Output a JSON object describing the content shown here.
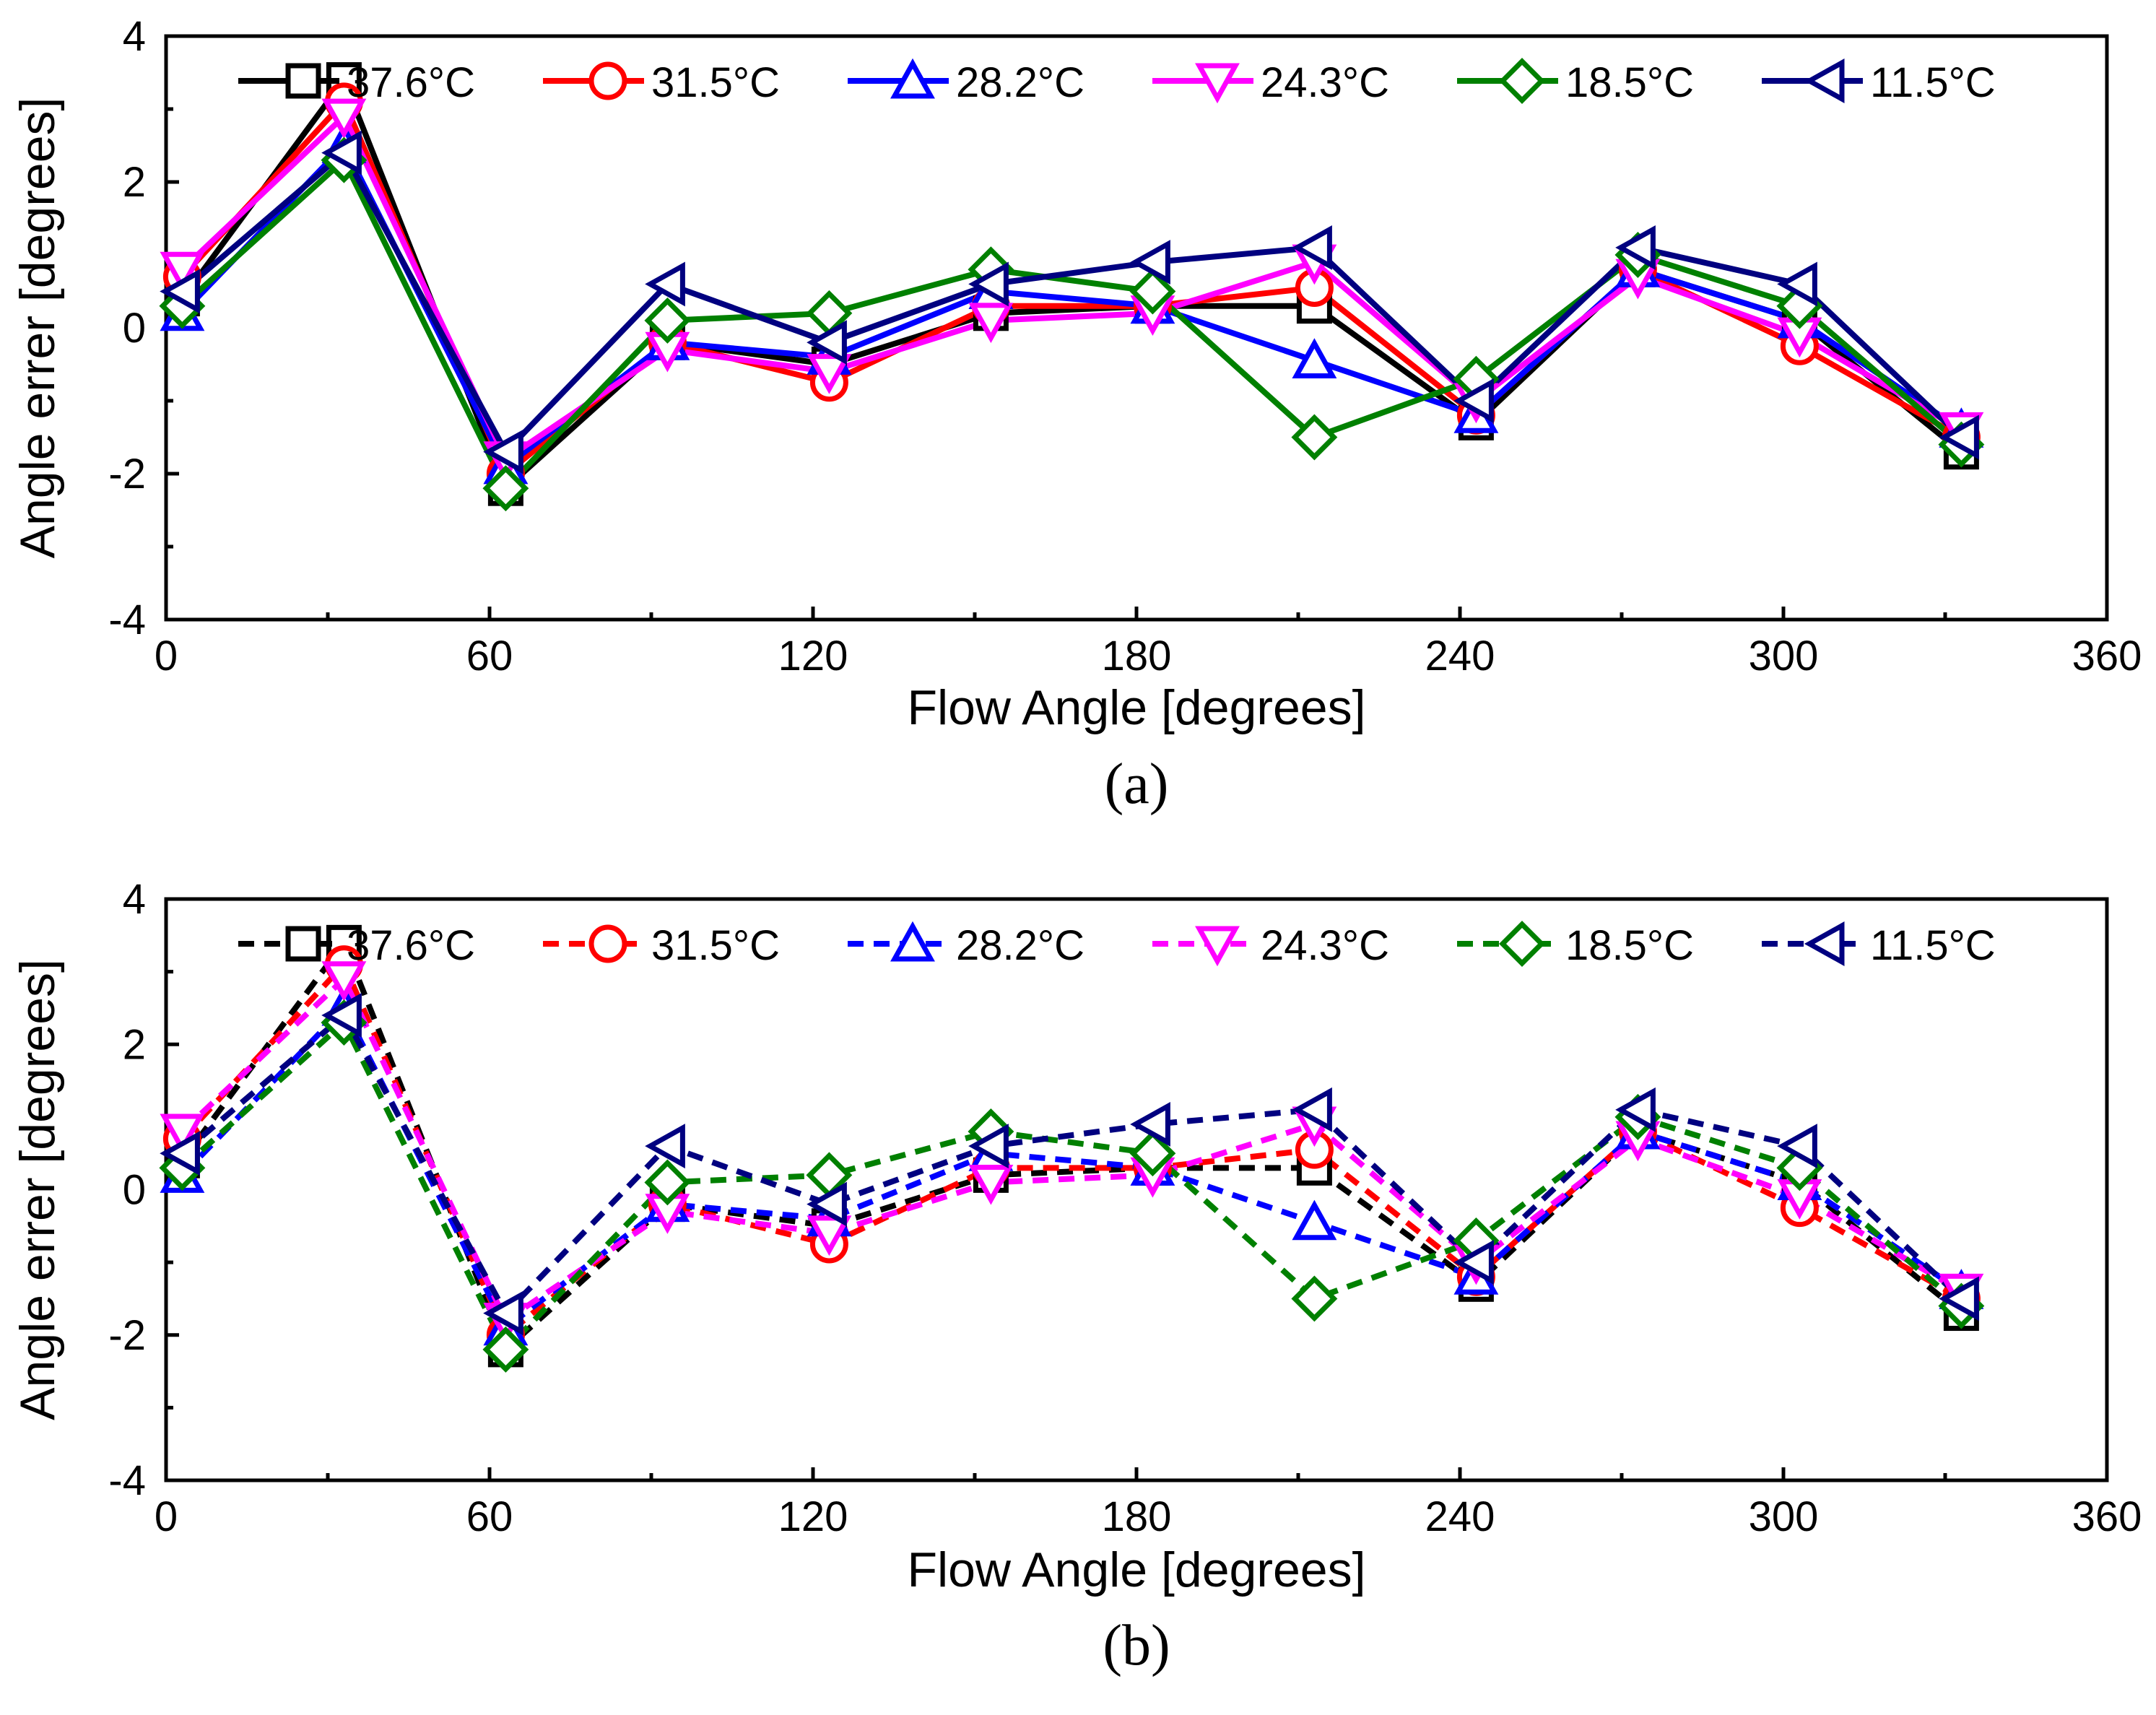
{
  "chart_data": [
    {
      "panel_label": "(a)",
      "type": "line",
      "line_style": "solid",
      "title": "",
      "xlabel": "Flow Angle [degrees]",
      "ylabel": "Angle errer [degrees]",
      "xlim": [
        0,
        360
      ],
      "ylim": [
        -4,
        4
      ],
      "xticks": [
        0,
        60,
        120,
        180,
        240,
        300,
        360
      ],
      "yticks": [
        -4,
        -2,
        0,
        2,
        4
      ],
      "grid": false,
      "legend_position": "top",
      "x": [
        3,
        33,
        63,
        93,
        123,
        153,
        183,
        213,
        243,
        273,
        303,
        333
      ],
      "series": [
        {
          "name": "37.6°C",
          "color": "#000000",
          "marker": "square",
          "values": [
            0.4,
            3.4,
            -2.2,
            -0.2,
            -0.5,
            0.2,
            0.3,
            0.3,
            -1.3,
            0.8,
            0.1,
            -1.7
          ]
        },
        {
          "name": "31.5°C",
          "color": "#ff0000",
          "marker": "circle",
          "values": [
            0.7,
            3.1,
            -2.0,
            -0.2,
            -0.75,
            0.3,
            0.3,
            0.55,
            -1.2,
            0.8,
            -0.25,
            -1.5
          ]
        },
        {
          "name": "28.2°C",
          "color": "#0000ff",
          "marker": "triangle-up",
          "values": [
            0.2,
            2.5,
            -1.9,
            -0.2,
            -0.4,
            0.5,
            0.3,
            -0.45,
            -1.2,
            0.8,
            0.1,
            -1.4
          ]
        },
        {
          "name": "24.3°C",
          "color": "#ff00ff",
          "marker": "triangle-down",
          "values": [
            0.8,
            2.9,
            -1.8,
            -0.3,
            -0.6,
            0.1,
            0.2,
            0.9,
            -1.0,
            0.7,
            -0.1,
            -1.4
          ]
        },
        {
          "name": "18.5°C",
          "color": "#008000",
          "marker": "diamond",
          "values": [
            0.3,
            2.3,
            -2.2,
            0.1,
            0.2,
            0.8,
            0.5,
            -1.5,
            -0.7,
            1.0,
            0.3,
            -1.6
          ]
        },
        {
          "name": "11.5°C",
          "color": "#000080",
          "marker": "triangle-left",
          "values": [
            0.5,
            2.4,
            -1.7,
            0.6,
            -0.2,
            0.6,
            0.9,
            1.1,
            -1.0,
            1.1,
            0.6,
            -1.5
          ]
        }
      ]
    },
    {
      "panel_label": "(b)",
      "type": "line",
      "line_style": "dashed",
      "title": "",
      "xlabel": "Flow Angle [degrees]",
      "ylabel": "Angle errer [degrees]",
      "xlim": [
        0,
        360
      ],
      "ylim": [
        -4,
        4
      ],
      "xticks": [
        0,
        60,
        120,
        180,
        240,
        300,
        360
      ],
      "yticks": [
        -4,
        -2,
        0,
        2,
        4
      ],
      "grid": false,
      "legend_position": "top",
      "x": [
        3,
        33,
        63,
        93,
        123,
        153,
        183,
        213,
        243,
        273,
        303,
        333
      ],
      "series": [
        {
          "name": "37.6°C",
          "color": "#000000",
          "marker": "square",
          "values": [
            0.4,
            3.4,
            -2.2,
            -0.2,
            -0.5,
            0.2,
            0.3,
            0.3,
            -1.3,
            0.8,
            0.1,
            -1.7
          ]
        },
        {
          "name": "31.5°C",
          "color": "#ff0000",
          "marker": "circle",
          "values": [
            0.7,
            3.1,
            -2.0,
            -0.2,
            -0.75,
            0.3,
            0.3,
            0.55,
            -1.2,
            0.8,
            -0.25,
            -1.5
          ]
        },
        {
          "name": "28.2°C",
          "color": "#0000ff",
          "marker": "triangle-up",
          "values": [
            0.2,
            2.5,
            -1.9,
            -0.2,
            -0.4,
            0.5,
            0.3,
            -0.45,
            -1.2,
            0.8,
            0.1,
            -1.4
          ]
        },
        {
          "name": "24.3°C",
          "color": "#ff00ff",
          "marker": "triangle-down",
          "values": [
            0.8,
            2.9,
            -1.8,
            -0.3,
            -0.6,
            0.1,
            0.2,
            0.9,
            -1.0,
            0.7,
            -0.1,
            -1.4
          ]
        },
        {
          "name": "18.5°C",
          "color": "#008000",
          "marker": "diamond",
          "values": [
            0.3,
            2.3,
            -2.2,
            0.1,
            0.2,
            0.8,
            0.5,
            -1.5,
            -0.7,
            1.0,
            0.3,
            -1.6
          ]
        },
        {
          "name": "11.5°C",
          "color": "#000080",
          "marker": "triangle-left",
          "values": [
            0.5,
            2.4,
            -1.7,
            0.6,
            -0.2,
            0.6,
            0.9,
            1.1,
            -1.0,
            1.1,
            0.6,
            -1.5
          ]
        }
      ]
    }
  ]
}
